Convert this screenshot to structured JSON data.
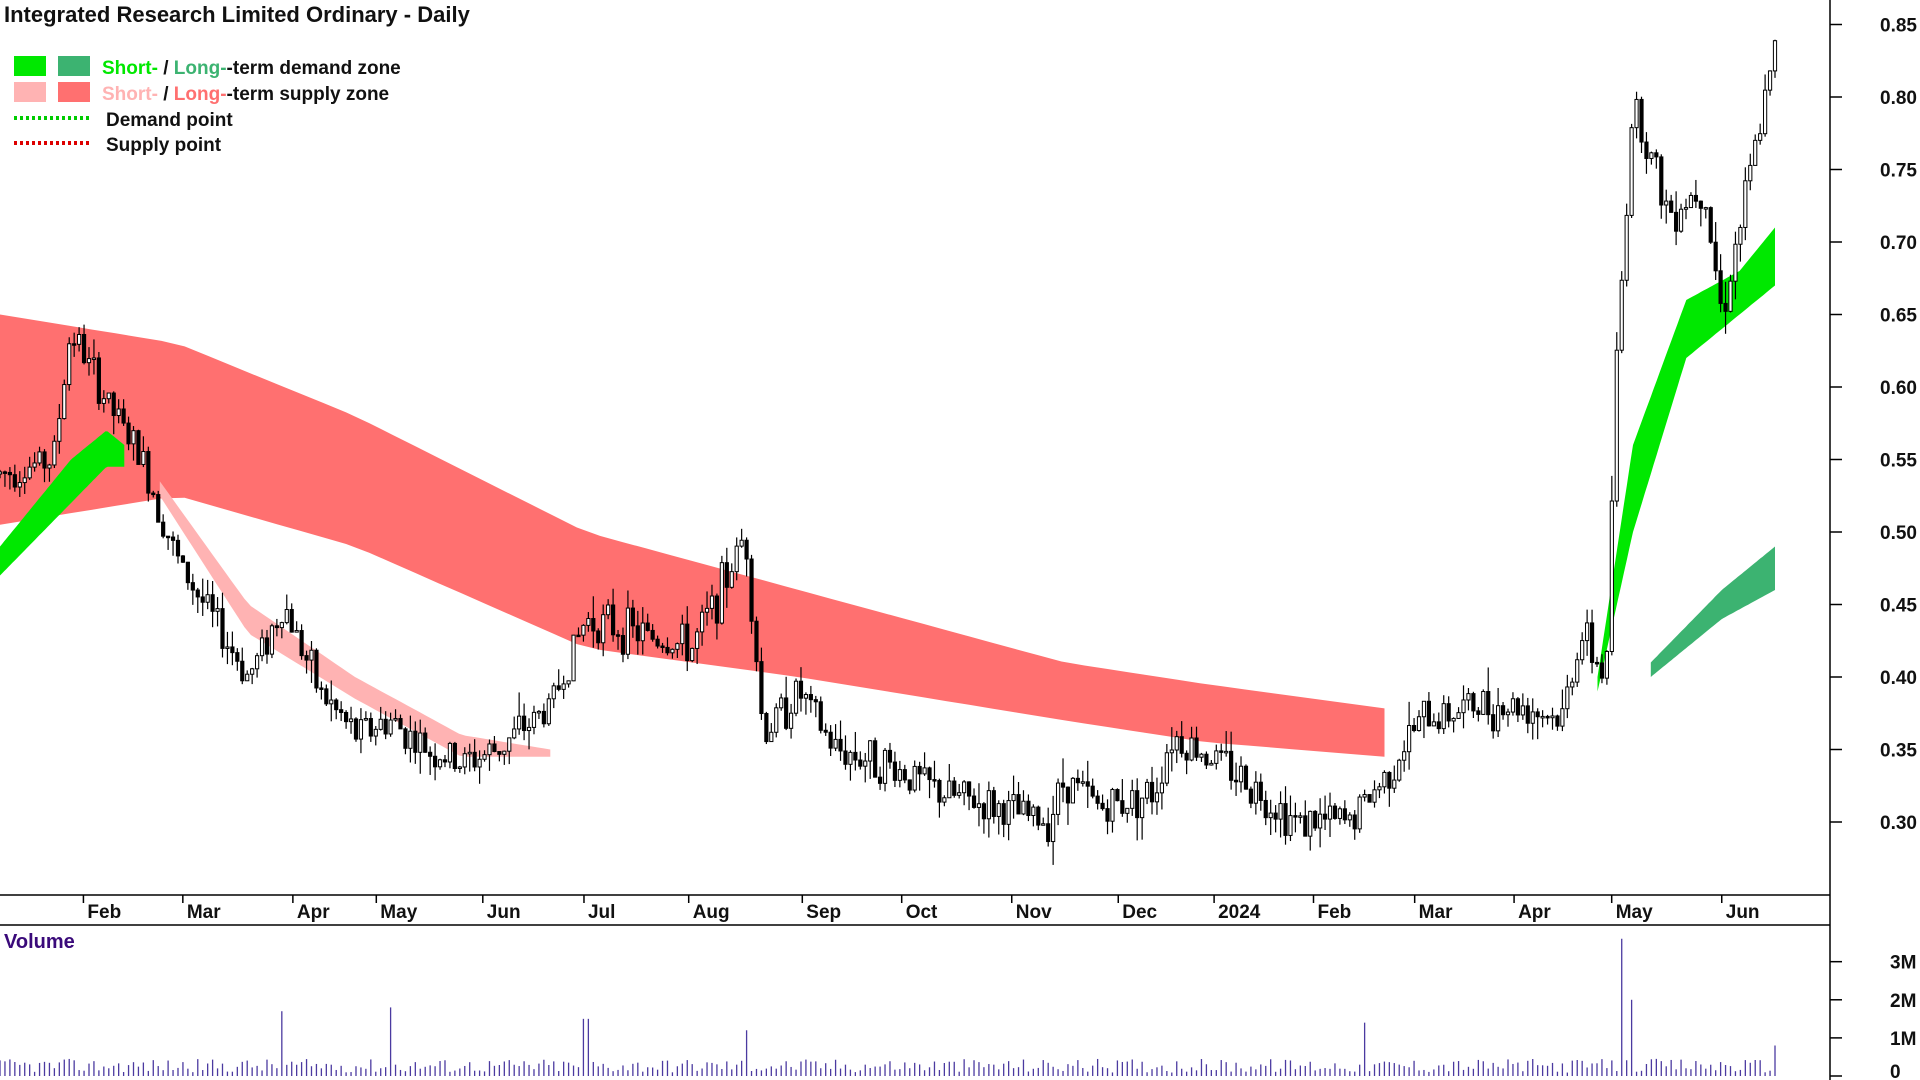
{
  "colors": {
    "short_demand": "#00e800",
    "long_demand": "#3cb371",
    "short_supply": "#ffb3b3",
    "long_supply": "#ff7070",
    "overlap": "#ff6a1a",
    "demand_point": "#00cc00",
    "supply_point": "#dd0000",
    "candle": "#000000",
    "volume": "#4b3aa0"
  },
  "chart_data": {
    "type": "candlestick",
    "title": "Integrated Research Limited Ordinary - Daily",
    "legend": {
      "placement": "top-left",
      "demand_zone": {
        "short": "Short-",
        "sep": " / ",
        "long": "Long-",
        "suffix": "-term demand zone"
      },
      "supply_zone": {
        "short": "Short-",
        "sep": " / ",
        "long": "Long-",
        "suffix": "-term supply zone"
      },
      "demand_point": "Demand point",
      "supply_point": "Supply point"
    },
    "y_axis": {
      "side": "right",
      "range": [
        0.26,
        0.86
      ],
      "ticks": [
        0.85,
        0.8,
        0.75,
        0.7,
        0.65,
        0.6,
        0.55,
        0.5,
        0.45,
        0.4,
        0.35,
        0.3
      ],
      "tick_labels": [
        "0.85",
        "0.80",
        "0.75",
        "0.70",
        "0.65",
        "0.60",
        "0.55",
        "0.50",
        "0.45",
        "0.40",
        "0.35",
        "0.30"
      ]
    },
    "x_axis": {
      "labels": [
        {
          "text": "Feb",
          "t": 0.047
        },
        {
          "text": "Mar",
          "t": 0.103
        },
        {
          "text": "Apr",
          "t": 0.165
        },
        {
          "text": "May",
          "t": 0.212
        },
        {
          "text": "Jun",
          "t": 0.272
        },
        {
          "text": "Jul",
          "t": 0.329
        },
        {
          "text": "Aug",
          "t": 0.388
        },
        {
          "text": "Sep",
          "t": 0.452
        },
        {
          "text": "Oct",
          "t": 0.508
        },
        {
          "text": "Nov",
          "t": 0.57
        },
        {
          "text": "Dec",
          "t": 0.63
        },
        {
          "text": "2024",
          "t": 0.684
        },
        {
          "text": "Feb",
          "t": 0.74
        },
        {
          "text": "Mar",
          "t": 0.797
        },
        {
          "text": "Apr",
          "t": 0.853
        },
        {
          "text": "May",
          "t": 0.908
        },
        {
          "text": "Jun",
          "t": 0.97
        }
      ]
    },
    "price_path": [
      [
        0.0,
        0.54
      ],
      [
        0.03,
        0.55
      ],
      [
        0.04,
        0.64
      ],
      [
        0.06,
        0.59
      ],
      [
        0.08,
        0.55
      ],
      [
        0.1,
        0.48
      ],
      [
        0.12,
        0.44
      ],
      [
        0.14,
        0.4
      ],
      [
        0.16,
        0.45
      ],
      [
        0.18,
        0.39
      ],
      [
        0.2,
        0.36
      ],
      [
        0.22,
        0.37
      ],
      [
        0.24,
        0.35
      ],
      [
        0.26,
        0.34
      ],
      [
        0.28,
        0.35
      ],
      [
        0.31,
        0.38
      ],
      [
        0.33,
        0.44
      ],
      [
        0.36,
        0.43
      ],
      [
        0.39,
        0.42
      ],
      [
        0.41,
        0.47
      ],
      [
        0.42,
        0.5
      ],
      [
        0.43,
        0.36
      ],
      [
        0.45,
        0.39
      ],
      [
        0.47,
        0.35
      ],
      [
        0.5,
        0.34
      ],
      [
        0.53,
        0.32
      ],
      [
        0.56,
        0.31
      ],
      [
        0.59,
        0.3
      ],
      [
        0.6,
        0.33
      ],
      [
        0.62,
        0.31
      ],
      [
        0.65,
        0.32
      ],
      [
        0.66,
        0.36
      ],
      [
        0.69,
        0.34
      ],
      [
        0.71,
        0.32
      ],
      [
        0.73,
        0.3
      ],
      [
        0.76,
        0.3
      ],
      [
        0.78,
        0.33
      ],
      [
        0.8,
        0.37
      ],
      [
        0.83,
        0.38
      ],
      [
        0.86,
        0.38
      ],
      [
        0.88,
        0.37
      ],
      [
        0.89,
        0.43
      ],
      [
        0.905,
        0.4
      ],
      [
        0.91,
        0.6
      ],
      [
        0.92,
        0.8
      ],
      [
        0.94,
        0.72
      ],
      [
        0.96,
        0.74
      ],
      [
        0.97,
        0.65
      ],
      [
        0.985,
        0.74
      ],
      [
        1.0,
        0.83
      ]
    ],
    "zones": {
      "long_supply": {
        "top": [
          [
            0.0,
            0.65
          ],
          [
            0.1,
            0.63
          ],
          [
            0.2,
            0.58
          ],
          [
            0.33,
            0.5
          ],
          [
            0.45,
            0.46
          ],
          [
            0.6,
            0.41
          ],
          [
            0.68,
            0.395
          ],
          [
            0.8,
            0.375
          ],
          [
            0.86,
            0.37
          ]
        ],
        "bottom": [
          [
            0.0,
            0.505
          ],
          [
            0.1,
            0.525
          ],
          [
            0.2,
            0.49
          ],
          [
            0.33,
            0.42
          ],
          [
            0.45,
            0.4
          ],
          [
            0.6,
            0.37
          ],
          [
            0.68,
            0.355
          ],
          [
            0.78,
            0.345
          ]
        ]
      },
      "short_supply": {
        "top": [
          [
            0.09,
            0.535
          ],
          [
            0.14,
            0.45
          ],
          [
            0.2,
            0.4
          ],
          [
            0.26,
            0.36
          ],
          [
            0.31,
            0.35
          ]
        ],
        "bottom": [
          [
            0.09,
            0.525
          ],
          [
            0.14,
            0.43
          ],
          [
            0.2,
            0.385
          ],
          [
            0.26,
            0.345
          ],
          [
            0.31,
            0.345
          ]
        ]
      },
      "short_demand": {
        "top": [
          [
            0.0,
            0.49
          ],
          [
            0.04,
            0.55
          ],
          [
            0.06,
            0.57
          ],
          [
            0.07,
            0.56
          ]
        ],
        "bottom": [
          [
            0.0,
            0.47
          ],
          [
            0.04,
            0.52
          ],
          [
            0.06,
            0.545
          ],
          [
            0.07,
            0.545
          ]
        ]
      },
      "long_demand": {
        "top": [
          [
            0.93,
            0.41
          ],
          [
            0.97,
            0.46
          ],
          [
            1.0,
            0.49
          ]
        ],
        "bottom": [
          [
            0.93,
            0.4
          ],
          [
            0.97,
            0.44
          ],
          [
            1.0,
            0.46
          ]
        ]
      },
      "recent_short_demand": {
        "top": [
          [
            0.9,
            0.4
          ],
          [
            0.92,
            0.56
          ],
          [
            0.95,
            0.66
          ],
          [
            0.98,
            0.68
          ],
          [
            1.0,
            0.71
          ]
        ],
        "bottom": [
          [
            0.9,
            0.39
          ],
          [
            0.92,
            0.5
          ],
          [
            0.95,
            0.62
          ],
          [
            0.98,
            0.65
          ],
          [
            1.0,
            0.67
          ]
        ]
      }
    },
    "volume": {
      "label": "Volume",
      "ticks": [
        "3M",
        "2M",
        "1M",
        "0"
      ],
      "tick_values": [
        3000000,
        2000000,
        1000000,
        0
      ],
      "range": [
        0,
        3700000
      ],
      "spikes": [
        {
          "t": 0.16,
          "v": 1700000
        },
        {
          "t": 0.22,
          "v": 1800000
        },
        {
          "t": 0.33,
          "v": 1500000
        },
        {
          "t": 0.42,
          "v": 1200000
        },
        {
          "t": 0.77,
          "v": 1400000
        },
        {
          "t": 0.913,
          "v": 3600000
        },
        {
          "t": 0.92,
          "v": 2000000
        },
        {
          "t": 1.0,
          "v": 800000
        }
      ],
      "baseline": 300000
    }
  }
}
